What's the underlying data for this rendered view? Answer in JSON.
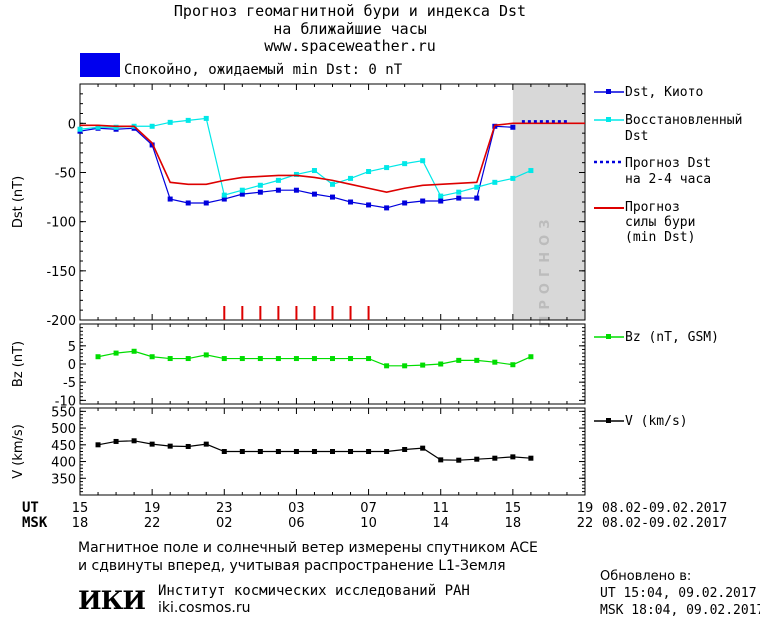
{
  "header": {
    "title1": "Прогноз геомагнитной бури и индекса Dst",
    "title2": "на ближайшие часы",
    "site": "www.spaceweather.ru",
    "status_color": "#0000ee",
    "status_text": "Спокойно, ожидаемый min Dst: 0 nT"
  },
  "legend": {
    "dst_kyoto": "Dst, Киото",
    "restored_1": "Восстановленный",
    "restored_2": "Dst",
    "forecast_1": "Прогноз Dst",
    "forecast_2": "на 2-4 часа",
    "storm_1": "Прогноз",
    "storm_2": "силы бури",
    "storm_3": "(min Dst)",
    "bz": "Bz (nT, GSM)",
    "v": "V (km/s)"
  },
  "time_axis": {
    "ut_label": "UT",
    "msk_label": "MSK",
    "ut_ticks": [
      "15",
      "19",
      "23",
      "03",
      "07",
      "11",
      "15",
      "19"
    ],
    "msk_ticks": [
      "18",
      "22",
      "02",
      "06",
      "10",
      "14",
      "18",
      "22"
    ],
    "date_range": "08.02-09.02.2017"
  },
  "chart_data": [
    {
      "type": "line",
      "ylabel": "Dst (nT)",
      "ylim": [
        -200,
        40
      ],
      "yticks": [
        0,
        -50,
        -100,
        -150,
        -200
      ],
      "x_unit": "hours since 15 UT 08.02.2017",
      "xlim": [
        0,
        28
      ],
      "forecast_shade_x": [
        24,
        28
      ],
      "forecast_shade_label": "ПРОГНОЗ",
      "storm_markers_x": [
        8,
        9,
        10,
        11,
        12,
        13,
        14,
        15,
        16
      ],
      "series": [
        {
          "name": "Dst, Киото",
          "color": "#0000dd",
          "x": [
            0,
            1,
            2,
            3,
            4,
            5,
            6,
            7,
            8,
            9,
            10,
            11,
            12,
            13,
            14,
            15,
            16,
            17,
            18,
            19,
            20,
            21,
            22,
            23,
            24
          ],
          "values": [
            -8,
            -5,
            -6,
            -5,
            -22,
            -77,
            -81,
            -81,
            -77,
            -72,
            -70,
            -68,
            -68,
            -72,
            -75,
            -80,
            -83,
            -86,
            -81,
            -79,
            -79,
            -76,
            -76,
            -3,
            -4
          ]
        },
        {
          "name": "Восстановленный Dst",
          "color": "#00e8e8",
          "x": [
            0,
            1,
            2,
            3,
            4,
            5,
            6,
            7,
            8,
            9,
            10,
            11,
            12,
            13,
            14,
            15,
            16,
            17,
            18,
            19,
            20,
            21,
            22,
            23,
            24,
            25
          ],
          "values": [
            -6,
            -4,
            -4,
            -3,
            -3,
            1,
            3,
            5,
            -73,
            -68,
            -63,
            -58,
            -52,
            -48,
            -62,
            -56,
            -49,
            -45,
            -41,
            -38,
            -74,
            -70,
            -65,
            -60,
            -56,
            -48
          ]
        },
        {
          "name": "Прогноз силы бури (min Dst)",
          "color": "#dd0000",
          "x": [
            0,
            1,
            2,
            3,
            4,
            5,
            6,
            7,
            8,
            9,
            10,
            11,
            12,
            13,
            14,
            15,
            16,
            17,
            18,
            19,
            20,
            21,
            22,
            23,
            24,
            25,
            26,
            27,
            28
          ],
          "values": [
            -2,
            -2,
            -3,
            -3,
            -20,
            -60,
            -62,
            -62,
            -58,
            -55,
            -54,
            -53,
            -53,
            -55,
            -58,
            -62,
            -66,
            -70,
            -66,
            -63,
            -62,
            -61,
            -60,
            -2,
            0,
            0,
            0,
            0,
            0
          ]
        },
        {
          "name": "Прогноз Dst на 2-4 часа",
          "color": "#0000dd",
          "x": [
            24.5,
            27
          ],
          "values": [
            2,
            2
          ]
        }
      ]
    },
    {
      "type": "line",
      "ylabel": "Bz (nT)",
      "ylim": [
        -11,
        11
      ],
      "yticks": [
        5,
        0,
        -5,
        -10
      ],
      "series": [
        {
          "name": "Bz (nT, GSM)",
          "color": "#00dd00",
          "x": [
            1,
            2,
            3,
            4,
            5,
            6,
            7,
            8,
            9,
            10,
            11,
            12,
            13,
            14,
            15,
            16,
            17,
            18,
            19,
            20,
            21,
            22,
            23,
            24,
            25
          ],
          "values": [
            2,
            3,
            3.5,
            2,
            1.5,
            1.5,
            2.5,
            1.5,
            1.5,
            1.5,
            1.5,
            1.5,
            1.5,
            1.5,
            1.5,
            1.5,
            -0.5,
            -0.5,
            -0.3,
            0,
            1,
            1,
            0.5,
            -0.2,
            2
          ]
        }
      ]
    },
    {
      "type": "line",
      "ylabel": "V (km/s)",
      "ylim": [
        300,
        560
      ],
      "yticks": [
        550,
        500,
        450,
        400,
        350
      ],
      "series": [
        {
          "name": "V (km/s)",
          "color": "#000000",
          "x": [
            1,
            2,
            3,
            4,
            5,
            6,
            7,
            8,
            9,
            10,
            11,
            12,
            13,
            14,
            15,
            16,
            17,
            18,
            19,
            20,
            21,
            22,
            23,
            24,
            25
          ],
          "values": [
            450,
            460,
            462,
            452,
            446,
            445,
            452,
            430,
            430,
            430,
            430,
            430,
            430,
            430,
            430,
            430,
            430,
            436,
            440,
            405,
            404,
            407,
            410,
            414,
            410
          ]
        }
      ]
    }
  ],
  "footer": {
    "line1": "Магнитное поле и солнечный ветер измерены спутником ACE",
    "line2": "и сдвинуты вперед, учитывая распространение L1-Земля",
    "logo": "ИКИ",
    "inst": "Институт космических исследований РАН",
    "inst_url": "iki.cosmos.ru",
    "updated": "Обновлено в:",
    "updated_ut": "UT  15:04, 09.02.2017",
    "updated_msk": "MSK 18:04, 09.02.2017"
  }
}
